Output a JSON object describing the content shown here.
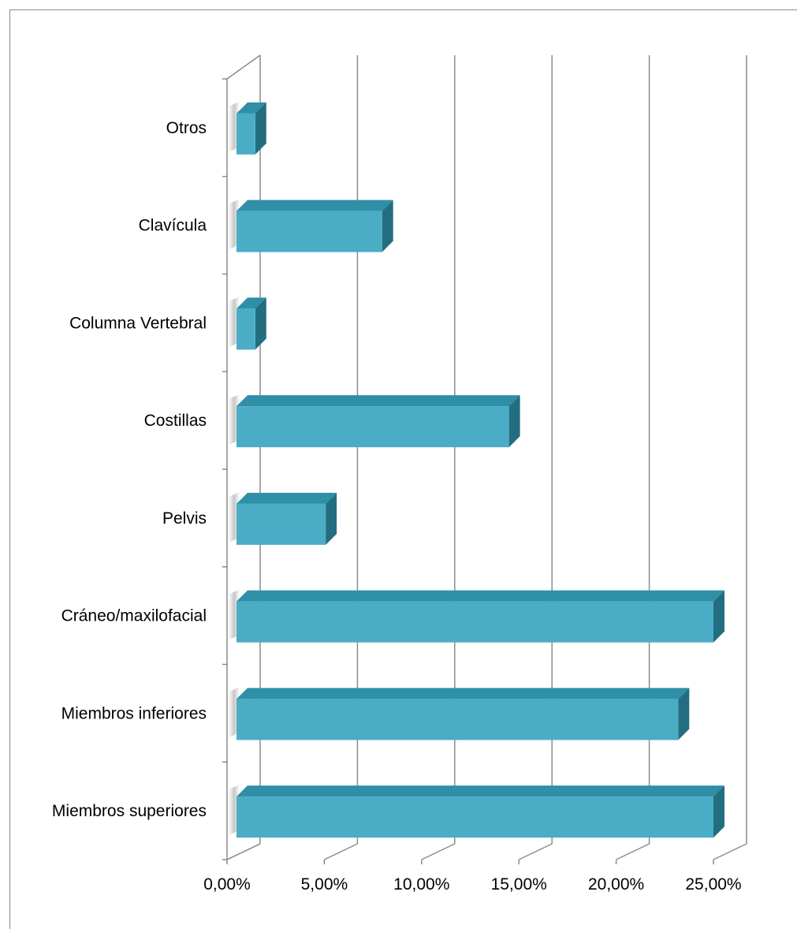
{
  "chart_data": {
    "type": "bar",
    "orientation": "horizontal",
    "style": "3d",
    "categories": [
      "Miembros superiores",
      "Miembros inferiores",
      "Cráneo/maxilofacial",
      "Pelvis",
      "Costillas",
      "Columna Vertebral",
      "Clavícula",
      "Otros"
    ],
    "values": [
      0.2609,
      0.2319,
      0.2609,
      0.0507,
      0.1449,
      0.0145,
      0.0797,
      0.0145
    ],
    "xticks": [
      "0,00%",
      "5,00%",
      "10,00%",
      "15,00%",
      "20,00%",
      "25,00%"
    ],
    "xlim": [
      0,
      0.25
    ],
    "title": "",
    "xlabel": "",
    "ylabel": "",
    "grid": true,
    "legend": "none",
    "colors": {
      "bar_front": "#4bacc6",
      "bar_top": "#2e8fa6",
      "bar_side": "#226e80",
      "gridline": "#8c8c8c"
    }
  }
}
